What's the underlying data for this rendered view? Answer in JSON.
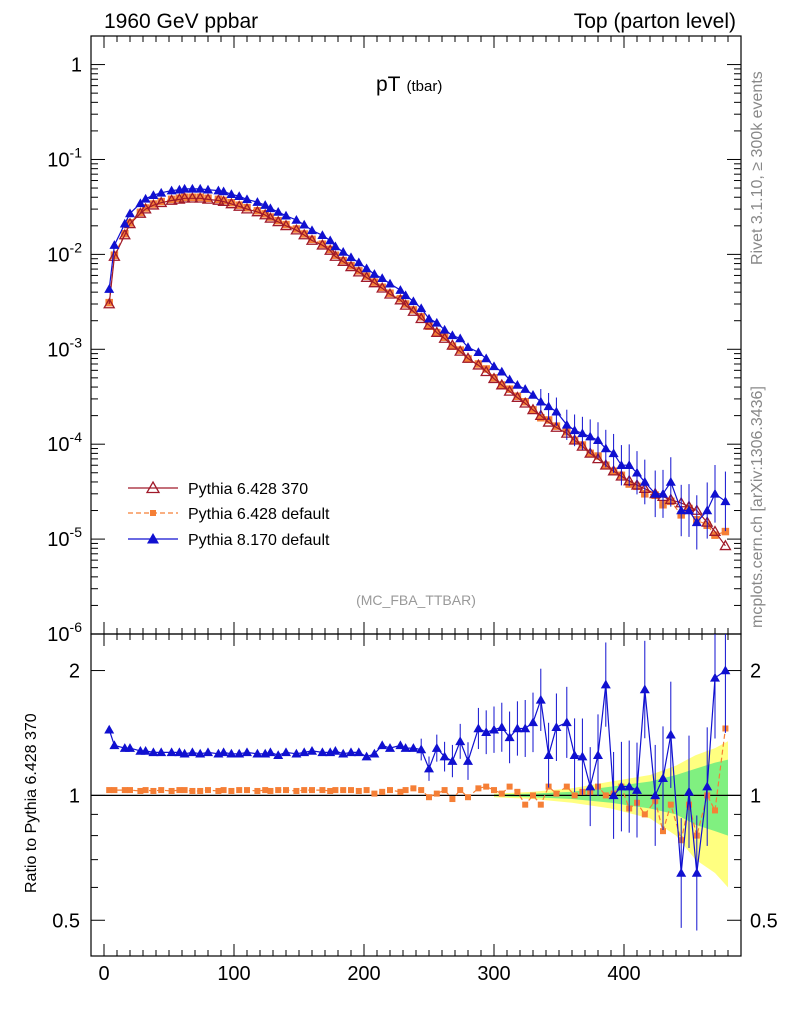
{
  "header": {
    "left": "1960 GeV ppbar",
    "right": "Top (parton level)"
  },
  "side_labels": {
    "rivet": "Rivet 3.1.10, ≥ 300k events",
    "mcplots": "mcplots.cern.ch [arXiv:1306.3436]"
  },
  "plot_title": {
    "main": "pT",
    "sub": "(tbar)"
  },
  "analysis_label": "(MC_FBA_TTBAR)",
  "ratio_ylabel": "Ratio to Pythia 6.428 370",
  "colors": {
    "p6_370": "#a01a2a",
    "p6_def": "#f57f36",
    "p8": "#1010d0",
    "band_yellow": "#ffff80",
    "band_green": "#80f080"
  },
  "chart_data": [
    {
      "type": "line",
      "panel": "main",
      "yscale": "log",
      "xlim": [
        -10,
        490
      ],
      "ylim": [
        1e-06,
        2
      ],
      "x": [
        4,
        8,
        16,
        20,
        28,
        32,
        38,
        44,
        52,
        58,
        62,
        68,
        74,
        80,
        88,
        92,
        98,
        104,
        110,
        118,
        124,
        128,
        134,
        140,
        148,
        154,
        160,
        168,
        174,
        178,
        184,
        190,
        196,
        202,
        208,
        214,
        220,
        228,
        232,
        238,
        244,
        250,
        256,
        262,
        268,
        274,
        280,
        288,
        294,
        300,
        306,
        312,
        318,
        324,
        330,
        336,
        342,
        348,
        356,
        362,
        368,
        374,
        380,
        386,
        392,
        398,
        404,
        410,
        416,
        424,
        430,
        436,
        444,
        450,
        456,
        464,
        470,
        478
      ],
      "series": [
        {
          "name": "Pythia 6.428 370",
          "marker": "open-triangle",
          "values": [
            0.003,
            0.0095,
            0.016,
            0.021,
            0.027,
            0.03,
            0.033,
            0.035,
            0.037,
            0.038,
            0.039,
            0.039,
            0.039,
            0.038,
            0.037,
            0.036,
            0.034,
            0.032,
            0.03,
            0.028,
            0.026,
            0.024,
            0.022,
            0.02,
            0.018,
            0.016,
            0.014,
            0.0125,
            0.011,
            0.0095,
            0.0084,
            0.0074,
            0.0065,
            0.0057,
            0.005,
            0.0044,
            0.0038,
            0.0033,
            0.0029,
            0.0025,
            0.0021,
            0.0018,
            0.0015,
            0.0013,
            0.0011,
            0.00095,
            0.0008,
            0.00068,
            0.00058,
            0.00049,
            0.00042,
            0.00036,
            0.00031,
            0.00027,
            0.00023,
            0.0002,
            0.00017,
            0.00015,
            0.00013,
            0.00011,
            9.5e-05,
            8e-05,
            7e-05,
            6e-05,
            5.2e-05,
            4.6e-05,
            4.1e-05,
            3.7e-05,
            3.4e-05,
            3e-05,
            2.8e-05,
            2.6e-05,
            2.4e-05,
            2.2e-05,
            2e-05,
            1.5e-05,
            1.2e-05,
            8.5e-06
          ]
        },
        {
          "name": "Pythia 6.428 default",
          "marker": "filled-square",
          "values": [
            0.0031,
            0.0098,
            0.0165,
            0.0215,
            0.0277,
            0.0308,
            0.0339,
            0.036,
            0.038,
            0.039,
            0.04,
            0.04,
            0.04,
            0.039,
            0.038,
            0.037,
            0.035,
            0.033,
            0.031,
            0.0288,
            0.0267,
            0.0247,
            0.0226,
            0.0206,
            0.0185,
            0.0164,
            0.0144,
            0.0128,
            0.0113,
            0.0098,
            0.0086,
            0.0076,
            0.0067,
            0.0059,
            0.0051,
            0.0045,
            0.0039,
            0.0034,
            0.003,
            0.0026,
            0.0022,
            0.00175,
            0.0015,
            0.00134,
            0.00108,
            0.00098,
            0.00079,
            0.0007,
            0.00062,
            0.0005,
            0.00042,
            0.00038,
            0.00032,
            0.00028,
            0.00023,
            0.00019,
            0.00018,
            0.000155,
            0.000135,
            0.00011,
            9.8e-05,
            8e-05,
            7.5e-05,
            6e-05,
            5.2e-05,
            4.7e-05,
            3.8e-05,
            3.6e-05,
            3e-05,
            2.9e-05,
            2.3e-05,
            2.5e-05,
            1.8e-05,
            2.1e-05,
            1.6e-05,
            1.4e-05,
            1.1e-05,
            1.2e-05
          ]
        },
        {
          "name": "Pythia 8.170 default",
          "marker": "filled-triangle",
          "values": [
            0.0043,
            0.0125,
            0.021,
            0.027,
            0.0345,
            0.0385,
            0.042,
            0.0445,
            0.047,
            0.048,
            0.049,
            0.049,
            0.049,
            0.048,
            0.047,
            0.046,
            0.043,
            0.041,
            0.038,
            0.0355,
            0.033,
            0.0305,
            0.028,
            0.0255,
            0.023,
            0.0205,
            0.0179,
            0.0159,
            0.014,
            0.0121,
            0.0106,
            0.0093,
            0.0082,
            0.0071,
            0.0062,
            0.0056,
            0.0049,
            0.0042,
            0.0037,
            0.0032,
            0.0027,
            0.0021,
            0.0019,
            0.0016,
            0.0014,
            0.0013,
            0.00105,
            0.00093,
            0.0008,
            0.00066,
            0.00058,
            0.00048,
            0.00042,
            0.00038,
            0.00033,
            0.00028,
            0.00025,
            0.00022,
            0.00016,
            0.00014,
            0.00013,
            0.00012,
            0.00011,
            9e-05,
            8e-05,
            6e-05,
            6e-05,
            5e-05,
            4e-05,
            3e-05,
            3e-05,
            4e-05,
            2e-05,
            2e-05,
            1.5e-05,
            2e-05,
            3e-05,
            2.5e-05
          ]
        }
      ],
      "y_tick_labels": [
        "1",
        "10^-1",
        "10^-2",
        "10^-3",
        "10^-4",
        "10^-5",
        "10^-6"
      ]
    },
    {
      "type": "line",
      "panel": "ratio",
      "yscale": "log",
      "xlabel": "",
      "ylabel": "Ratio to Pythia 6.428 370",
      "xlim": [
        -10,
        490
      ],
      "ylim": [
        0.41,
        2.45
      ],
      "x_tick_labels": [
        "0",
        "100",
        "200",
        "300",
        "400"
      ],
      "y_tick_labels": [
        "0.5",
        "1",
        "2"
      ],
      "x": [
        4,
        8,
        16,
        20,
        28,
        32,
        38,
        44,
        52,
        58,
        62,
        68,
        74,
        80,
        88,
        92,
        98,
        104,
        110,
        118,
        124,
        128,
        134,
        140,
        148,
        154,
        160,
        168,
        174,
        178,
        184,
        190,
        196,
        202,
        208,
        214,
        220,
        228,
        232,
        238,
        244,
        250,
        256,
        262,
        268,
        274,
        280,
        288,
        294,
        300,
        306,
        312,
        318,
        324,
        330,
        336,
        342,
        348,
        356,
        362,
        368,
        374,
        380,
        386,
        392,
        398,
        404,
        410,
        416,
        424,
        430,
        436,
        444,
        450,
        456,
        464,
        470,
        478
      ],
      "series": [
        {
          "name": "Pythia 6.428 default",
          "marker": "filled-square",
          "values": [
            1.03,
            1.03,
            1.03,
            1.03,
            1.025,
            1.03,
            1.025,
            1.03,
            1.025,
            1.03,
            1.03,
            1.025,
            1.025,
            1.03,
            1.025,
            1.03,
            1.025,
            1.03,
            1.03,
            1.025,
            1.03,
            1.025,
            1.03,
            1.03,
            1.025,
            1.03,
            1.03,
            1.03,
            1.025,
            1.03,
            1.03,
            1.03,
            1.025,
            1.03,
            1.01,
            1.02,
            1.03,
            1.02,
            1.03,
            1.04,
            1.03,
            0.99,
            1.01,
            1.03,
            0.98,
            1.03,
            0.99,
            1.04,
            1.05,
            1.03,
            1.01,
            1.05,
            1.02,
            0.95,
            1.0,
            0.95,
            1.05,
            1.01,
            1.05,
            1.0,
            1.02,
            1.02,
            1.05,
            1.0,
            1.01,
            1.05,
            0.93,
            0.96,
            0.9,
            0.97,
            0.82,
            0.95,
            0.78,
            0.95,
            0.8,
            1.0,
            0.92,
            1.45
          ]
        },
        {
          "name": "Pythia 8.170 default",
          "marker": "filled-triangle",
          "values": [
            1.44,
            1.32,
            1.3,
            1.3,
            1.28,
            1.28,
            1.27,
            1.27,
            1.27,
            1.27,
            1.26,
            1.27,
            1.26,
            1.27,
            1.26,
            1.27,
            1.26,
            1.26,
            1.27,
            1.26,
            1.26,
            1.27,
            1.25,
            1.27,
            1.26,
            1.27,
            1.28,
            1.27,
            1.27,
            1.28,
            1.26,
            1.27,
            1.27,
            1.24,
            1.26,
            1.32,
            1.3,
            1.32,
            1.3,
            1.3,
            1.29,
            1.16,
            1.3,
            1.24,
            1.21,
            1.35,
            1.21,
            1.45,
            1.42,
            1.44,
            1.46,
            1.38,
            1.45,
            1.45,
            1.5,
            1.7,
            1.25,
            1.46,
            1.5,
            1.25,
            1.24,
            1.05,
            1.25,
            1.85,
            1.0,
            1.05,
            1.05,
            1.03,
            1.8,
            1.0,
            1.1,
            1.4,
            0.65,
            1.02,
            0.65,
            1.05,
            1.92,
            2.0
          ]
        }
      ],
      "mc_uncertainty_band": {
        "x": [
          300,
          330,
          360,
          390,
          420,
          440,
          455,
          470,
          480
        ],
        "yellow_lo": [
          0.99,
          0.98,
          0.96,
          0.93,
          0.88,
          0.8,
          0.7,
          0.65,
          0.6
        ],
        "yellow_hi": [
          1.01,
          1.02,
          1.04,
          1.08,
          1.12,
          1.18,
          1.25,
          1.3,
          1.35
        ],
        "green_lo": [
          0.995,
          0.99,
          0.98,
          0.96,
          0.93,
          0.9,
          0.85,
          0.82,
          0.8
        ],
        "green_hi": [
          1.005,
          1.01,
          1.02,
          1.05,
          1.08,
          1.12,
          1.16,
          1.2,
          1.22
        ]
      }
    }
  ]
}
